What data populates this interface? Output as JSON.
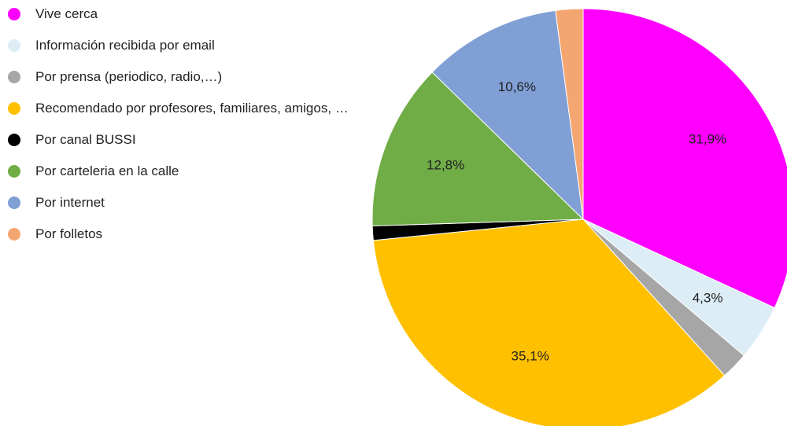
{
  "chart_data": {
    "type": "pie",
    "categories": [
      "Vive cerca",
      "Información recibida por email",
      "Por prensa (periodico, radio,…)",
      "Recomendado por profesores, familiares, amigos, …",
      "Por canal BUSSI",
      "Por carteleria en la calle",
      "Por internet",
      "Por folletos"
    ],
    "values": [
      31.9,
      4.3,
      2.1,
      35.1,
      1.1,
      12.8,
      10.6,
      2.1
    ],
    "value_labels": [
      "31,9%",
      "4,3%",
      null,
      "35,1%",
      null,
      "12,8%",
      "10,6%",
      null
    ],
    "colors": [
      "#ff00ff",
      "#dcedf5",
      "#a6a6a6",
      "#ffc000",
      "#000000",
      "#70ad47",
      "#7f9fd5",
      "#f4a671"
    ],
    "legend": "left"
  }
}
